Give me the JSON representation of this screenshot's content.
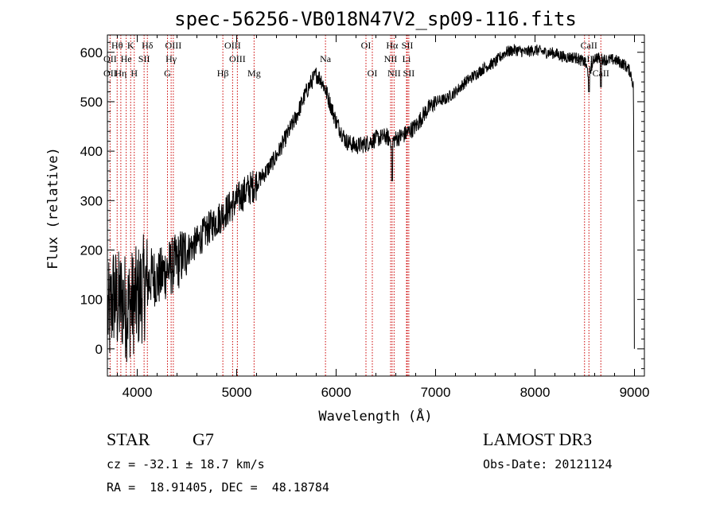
{
  "chart_data": {
    "type": "line",
    "title": "spec-56256-VB018N47V2_sp09-116.fits",
    "xlabel": "Wavelength (Å)",
    "ylabel": "Flux (relative)",
    "xlim": [
      3700,
      9100
    ],
    "ylim": [
      -55,
      635
    ],
    "xticks": [
      4000,
      5000,
      6000,
      7000,
      8000,
      9000
    ],
    "yticks": [
      0,
      100,
      200,
      300,
      400,
      500,
      600
    ],
    "spectrum_anchors": {
      "x": [
        3700,
        3720,
        3760,
        3800,
        3850,
        3900,
        3950,
        4000,
        4050,
        4100,
        4150,
        4200,
        4300,
        4400,
        4500,
        4600,
        4700,
        4800,
        4900,
        5000,
        5100,
        5200,
        5300,
        5400,
        5500,
        5600,
        5700,
        5750,
        5800,
        5850,
        5900,
        5950,
        6000,
        6100,
        6200,
        6300,
        6400,
        6500,
        6563,
        6600,
        6700,
        6800,
        6900,
        7000,
        7100,
        7200,
        7300,
        7400,
        7500,
        7600,
        7700,
        7800,
        7900,
        8000,
        8100,
        8200,
        8300,
        8400,
        8500,
        8540,
        8600,
        8700,
        8800,
        8900,
        8960,
        8990,
        9000
      ],
      "y": [
        80,
        60,
        110,
        90,
        100,
        80,
        95,
        100,
        120,
        130,
        150,
        140,
        160,
        175,
        200,
        215,
        240,
        260,
        280,
        300,
        320,
        335,
        360,
        390,
        430,
        470,
        520,
        540,
        555,
        545,
        520,
        490,
        460,
        420,
        410,
        415,
        425,
        430,
        420,
        425,
        435,
        450,
        480,
        500,
        505,
        520,
        540,
        555,
        570,
        580,
        600,
        605,
        600,
        605,
        600,
        598,
        590,
        590,
        580,
        555,
        590,
        585,
        585,
        575,
        560,
        530,
        0
      ]
    },
    "spectral_lines": {
      "top_row": [
        {
          "label": "Hθ",
          "x": 3798
        },
        {
          "label": "K",
          "x": 3934
        },
        {
          "label": "Hδ",
          "x": 4102
        },
        {
          "label": "OIII",
          "x": 4363
        },
        {
          "label": "OIII",
          "x": 4959
        },
        {
          "label": "OI",
          "x": 6300
        },
        {
          "label": "Hα",
          "x": 6563
        },
        {
          "label": "SII",
          "x": 6716
        },
        {
          "label": "CaII",
          "x": 8542
        }
      ],
      "middle_row": [
        {
          "label": "OII",
          "x": 3727
        },
        {
          "label": "He",
          "x": 3889
        },
        {
          "label": "SII",
          "x": 4069
        },
        {
          "label": "Hγ",
          "x": 4341
        },
        {
          "label": "OIII",
          "x": 5007
        },
        {
          "label": "Na",
          "x": 5893
        },
        {
          "label": "NII",
          "x": 6548
        },
        {
          "label": "Li",
          "x": 6708
        },
        {
          "label": "CaII",
          "x": 8498
        }
      ],
      "bottom_row": [
        {
          "label": "OII",
          "x": 3727
        },
        {
          "label": "Hη",
          "x": 3835
        },
        {
          "label": "H",
          "x": 3970
        },
        {
          "label": "G",
          "x": 4304
        },
        {
          "label": "Hβ",
          "x": 4861
        },
        {
          "label": "Mg",
          "x": 5175
        },
        {
          "label": "OI",
          "x": 6364
        },
        {
          "label": "NII",
          "x": 6583
        },
        {
          "label": "SII",
          "x": 6731
        },
        {
          "label": "CaII",
          "x": 8662
        }
      ]
    }
  },
  "info": {
    "class": "STAR",
    "subclass": "G7",
    "cz": "cz = -32.1 ± 18.7 km/s",
    "coords": "RA =  18.91405, DEC =  48.18784",
    "survey": "LAMOST DR3",
    "obs_date": "Obs-Date: 20121124"
  },
  "colors": {
    "axis": "#000000",
    "spectrum": "#000000",
    "line_marker": "#cc0000"
  }
}
